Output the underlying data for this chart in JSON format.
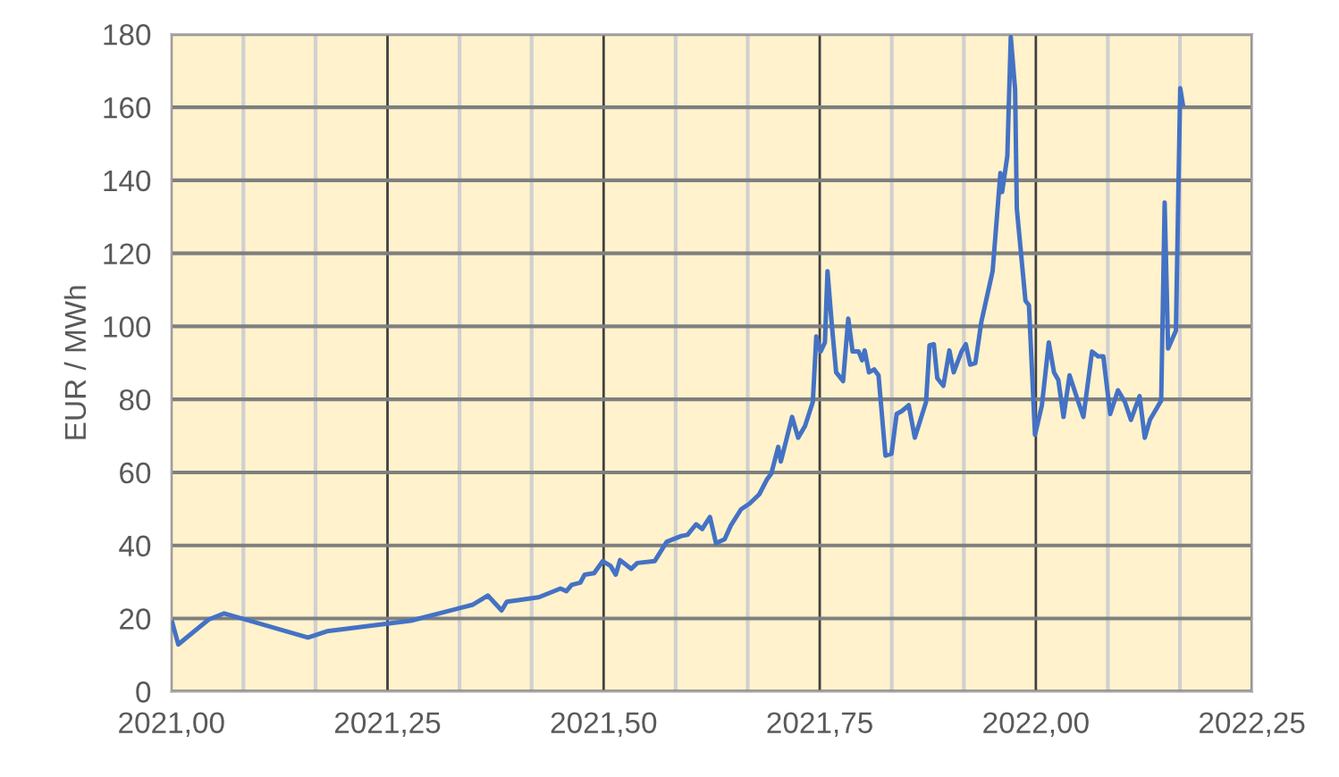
{
  "chart_data": {
    "type": "line",
    "ylabel": "EUR / MWh",
    "xlim": [
      2021.0,
      2022.25
    ],
    "ylim": [
      0,
      180
    ],
    "yticks": [
      0,
      20,
      40,
      60,
      80,
      100,
      120,
      140,
      160,
      180
    ],
    "xticks": [
      {
        "value": 2021.0,
        "label": "2021,00"
      },
      {
        "value": 2021.0833,
        "label": null
      },
      {
        "value": 2021.1667,
        "label": null
      },
      {
        "value": 2021.25,
        "label": "2021,25"
      },
      {
        "value": 2021.3333,
        "label": null
      },
      {
        "value": 2021.4167,
        "label": null
      },
      {
        "value": 2021.5,
        "label": "2021,50"
      },
      {
        "value": 2021.5833,
        "label": null
      },
      {
        "value": 2021.6667,
        "label": null
      },
      {
        "value": 2021.75,
        "label": "2021,75"
      },
      {
        "value": 2021.8333,
        "label": null
      },
      {
        "value": 2021.9167,
        "label": null
      },
      {
        "value": 2022.0,
        "label": "2022,00"
      },
      {
        "value": 2022.0833,
        "label": null
      },
      {
        "value": 2022.1667,
        "label": null
      },
      {
        "value": 2022.25,
        "label": "2022,25"
      }
    ],
    "grid": true,
    "marker": "none",
    "line_style": "solid",
    "series": [
      {
        "color": "#4472c4",
        "x": [
          2021.001,
          2021.008,
          2021.043,
          2021.061,
          2021.158,
          2021.18,
          2021.277,
          2021.349,
          2021.366,
          2021.382,
          2021.388,
          2021.425,
          2021.45,
          2021.457,
          2021.463,
          2021.473,
          2021.478,
          2021.489,
          2021.499,
          2021.508,
          2021.514,
          2021.519,
          2021.532,
          2021.539,
          2021.559,
          2021.573,
          2021.59,
          2021.597,
          2021.607,
          2021.614,
          2021.623,
          2021.63,
          2021.64,
          2021.647,
          2021.659,
          2021.669,
          2021.68,
          2021.689,
          2021.694,
          2021.702,
          2021.705,
          2021.711,
          2021.718,
          2021.725,
          2021.733,
          2021.742,
          2021.746,
          2021.751,
          2021.756,
          2021.759,
          2021.764,
          2021.769,
          2021.777,
          2021.783,
          2021.788,
          2021.795,
          2021.799,
          2021.802,
          2021.807,
          2021.813,
          2021.818,
          2021.826,
          2021.833,
          2021.839,
          2021.845,
          2021.853,
          2021.86,
          2021.873,
          2021.877,
          2021.882,
          2021.886,
          2021.893,
          2021.9,
          2021.905,
          2021.914,
          2021.919,
          2021.924,
          2021.93,
          2021.937,
          2021.95,
          2021.959,
          2021.961,
          2021.967,
          2021.971,
          2021.976,
          2021.978,
          2021.988,
          2021.992,
          2021.999,
          2022.007,
          2022.015,
          2022.021,
          2022.026,
          2022.032,
          2022.039,
          2022.048,
          2022.055,
          2022.065,
          2022.072,
          2022.078,
          2022.086,
          2022.095,
          2022.103,
          2022.11,
          2022.12,
          2022.126,
          2022.132,
          2022.145,
          2022.149,
          2022.153,
          2022.162,
          2022.167,
          2022.17
        ],
        "values": [
          18.9,
          12.9,
          19.7,
          21.4,
          14.8,
          16.5,
          19.4,
          23.8,
          26.3,
          22.2,
          24.6,
          25.8,
          28.2,
          27.5,
          29.2,
          29.8,
          32.0,
          32.4,
          35.7,
          34.4,
          32.0,
          36.0,
          33.6,
          35.2,
          35.7,
          41.0,
          42.6,
          42.9,
          45.8,
          44.5,
          47.8,
          40.6,
          41.7,
          45.4,
          49.9,
          51.5,
          54.0,
          58.1,
          59.7,
          67.0,
          63.0,
          68.6,
          75.2,
          69.5,
          72.7,
          79.3,
          97.2,
          93.1,
          95.6,
          115.1,
          100.4,
          87.4,
          85.0,
          102.1,
          93.1,
          93.1,
          90.7,
          93.4,
          87.4,
          88.2,
          86.6,
          64.6,
          65.1,
          76.0,
          76.8,
          78.4,
          69.5,
          79.3,
          94.8,
          95.1,
          85.8,
          83.7,
          93.4,
          87.4,
          93.1,
          95.1,
          89.5,
          89.9,
          101.3,
          115.1,
          142.0,
          136.8,
          146.6,
          179.2,
          164.9,
          132.2,
          107.0,
          105.8,
          70.3,
          78.4,
          95.6,
          87.4,
          85.3,
          75.2,
          86.6,
          80.1,
          75.2,
          93.1,
          91.8,
          91.8,
          76.0,
          82.5,
          79.3,
          74.4,
          80.9,
          69.5,
          74.4,
          79.7,
          133.9,
          93.9,
          98.8,
          165.2,
          160.8
        ]
      }
    ]
  }
}
